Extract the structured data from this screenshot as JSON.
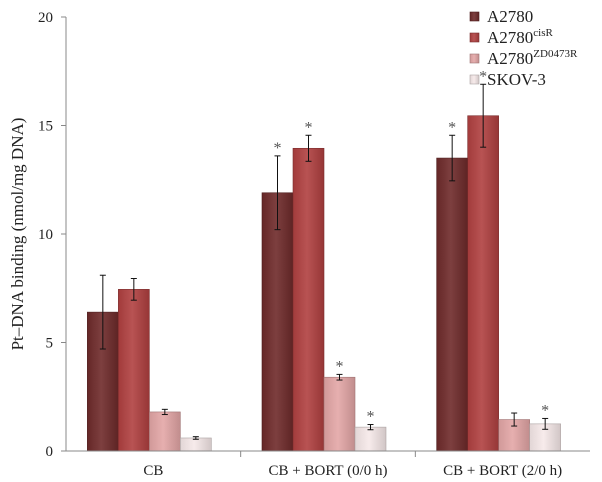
{
  "chart_data": {
    "type": "bar",
    "title": "",
    "xlabel": "",
    "ylabel": "Pt–DNA binding (nmol/mg DNA)",
    "ylim": [
      0,
      20
    ],
    "yticks": [
      0,
      5,
      10,
      15,
      20
    ],
    "categories": [
      "CB",
      "CB + BORT (0/0 h)",
      "CB + BORT (2/0 h)"
    ],
    "legend_position": "top-right",
    "series": [
      {
        "name": "A2780",
        "name_base": "A2780",
        "name_sup": "",
        "color": "#6e2a2a",
        "values": [
          6.4,
          11.9,
          13.5
        ],
        "errors": [
          1.7,
          1.7,
          1.05
        ],
        "significant": [
          false,
          true,
          true
        ]
      },
      {
        "name": "A2780cisR",
        "name_base": "A2780",
        "name_sup": "cisR",
        "color": "#b04040",
        "values": [
          7.45,
          13.95,
          15.45
        ],
        "errors": [
          0.5,
          0.6,
          1.45
        ],
        "significant": [
          false,
          true,
          true
        ]
      },
      {
        "name": "A2780ZD0473R",
        "name_base": "A2780",
        "name_sup": "ZD0473R",
        "color": "#e3a6a6",
        "values": [
          1.8,
          3.4,
          1.45
        ],
        "errors": [
          0.12,
          0.13,
          0.3
        ],
        "significant": [
          false,
          true,
          false
        ]
      },
      {
        "name": "SKOV-3",
        "name_base": "SKOV-3",
        "name_sup": "",
        "color": "#f6e9e9",
        "values": [
          0.6,
          1.1,
          1.25
        ],
        "errors": [
          0.06,
          0.12,
          0.25
        ],
        "significant": [
          false,
          true,
          true
        ]
      }
    ],
    "significance_marker": "*"
  }
}
